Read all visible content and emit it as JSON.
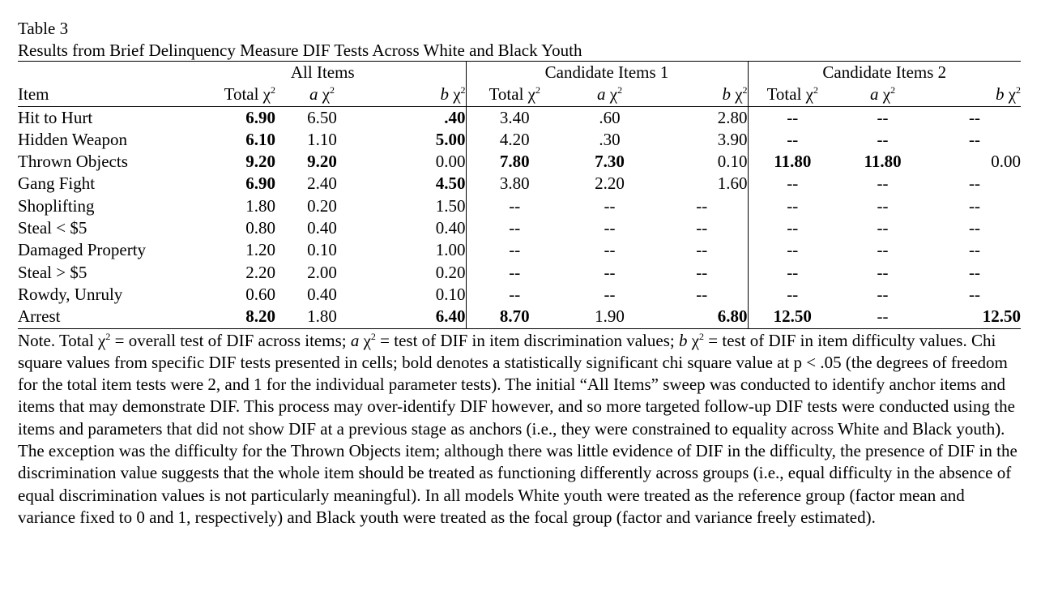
{
  "table_number": "Table 3",
  "title": "Results from Brief Delinquency Measure DIF Tests Across White and Black Youth",
  "groups": [
    "All Items",
    "Candidate Items 1",
    "Candidate Items 2"
  ],
  "item_header": "Item",
  "col_total": "Total χ",
  "col_a_letter": "a",
  "col_b_letter": "b",
  "chi": "χ",
  "sq": "2",
  "rows": [
    {
      "item": "Hit to Hurt",
      "v": [
        "6.90",
        "6.50",
        ".40",
        "3.40",
        ".60",
        "2.80",
        "--",
        "--",
        "--"
      ]
    },
    {
      "item": "Hidden Weapon",
      "v": [
        "6.10",
        "1.10",
        "5.00",
        "4.20",
        ".30",
        "3.90",
        "--",
        "--",
        "--"
      ]
    },
    {
      "item": "Thrown Objects",
      "v": [
        "9.20",
        "9.20",
        "0.00",
        "7.80",
        "7.30",
        "0.10",
        "11.80",
        "11.80",
        "0.00"
      ]
    },
    {
      "item": "Gang Fight",
      "v": [
        "6.90",
        "2.40",
        "4.50",
        "3.80",
        "2.20",
        "1.60",
        "--",
        "--",
        "--"
      ]
    },
    {
      "item": "Shoplifting",
      "v": [
        "1.80",
        "0.20",
        "1.50",
        "--",
        "--",
        "--",
        "--",
        "--",
        "--"
      ]
    },
    {
      "item": "Steal < $5",
      "v": [
        "0.80",
        "0.40",
        "0.40",
        "--",
        "--",
        "--",
        "--",
        "--",
        "--"
      ]
    },
    {
      "item": "Damaged Property",
      "v": [
        "1.20",
        "0.10",
        "1.00",
        "--",
        "--",
        "--",
        "--",
        "--",
        "--"
      ]
    },
    {
      "item": "Steal > $5",
      "v": [
        "2.20",
        "2.00",
        "0.20",
        "--",
        "--",
        "--",
        "--",
        "--",
        "--"
      ]
    },
    {
      "item": "Rowdy, Unruly",
      "v": [
        "0.60",
        "0.40",
        "0.10",
        "--",
        "--",
        "--",
        "--",
        "--",
        "--"
      ]
    },
    {
      "item": "Arrest",
      "v": [
        "8.20",
        "1.80",
        "6.40",
        "8.70",
        "1.90",
        "6.80",
        "12.50",
        "--",
        "12.50"
      ]
    }
  ],
  "note": {
    "p1": "Note. Total ",
    "p2": " = overall test of DIF across items; ",
    "p3": " = test of DIF in item discrimination values; ",
    "p4": " = test of DIF in item difficulty values. Chi square values from specific DIF tests presented in cells; bold denotes a statistically significant chi square value at p < .05 (the degrees of freedom for the total item tests were 2, and 1 for the individual parameter tests). The initial “All Items” sweep was conducted to identify anchor items and items that may demonstrate DIF. This process may over-identify DIF however, and so more targeted follow-up DIF tests were conducted using the items and parameters that did not show DIF at a previous stage as anchors (i.e., they were constrained to equality across White and Black youth). The exception was the difficulty for the Thrown Objects item; although there was little evidence of DIF in the difficulty, the presence of DIF in the discrimination value suggests that the whole item should be treated as functioning differently across groups (i.e., equal difficulty in the absence of equal discrimination values is not particularly meaningful). In all models White youth were treated as the reference group (factor mean and variance fixed to 0 and 1, respectively) and Black youth were treated as the focal group (factor and variance freely estimated)."
  }
}
